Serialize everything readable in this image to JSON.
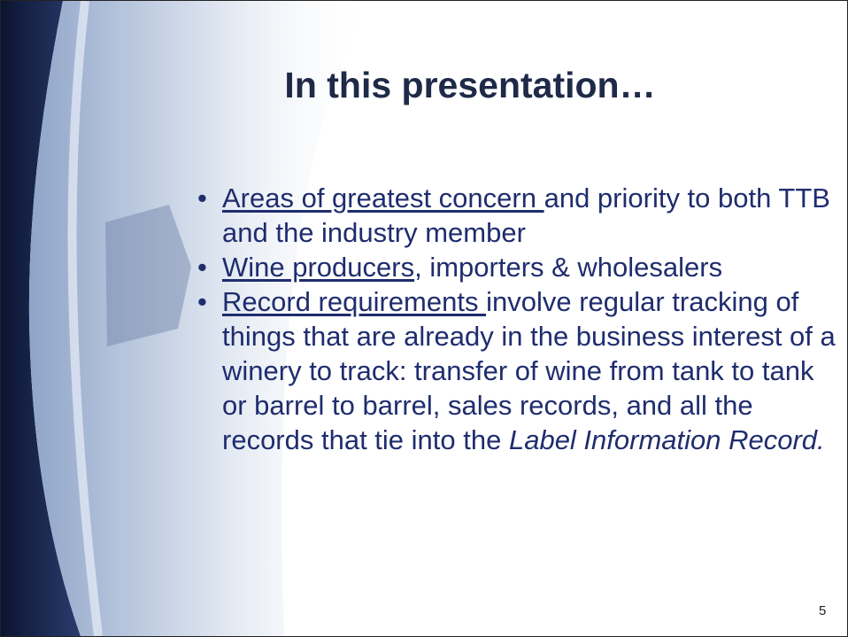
{
  "slide": {
    "title": "In this presentation…",
    "bullets": [
      {
        "link": "Areas of greatest concern ",
        "text": "and priority to both TTB and the industry member"
      },
      {
        "link": "Wine producers",
        "text": ", importers & wholesalers"
      },
      {
        "link": "Record requirements ",
        "text": "involve regular tracking of things that are already in the business interest of a winery to track: transfer of wine from tank to tank or barrel to barrel, sales records, and all the records that tie into the ",
        "italic": "Label Information Record."
      }
    ],
    "page_number": "5"
  }
}
